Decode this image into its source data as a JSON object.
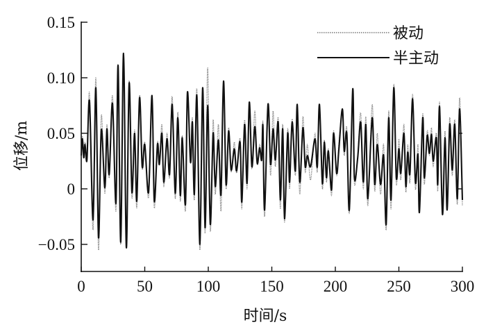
{
  "chart_data": {
    "type": "line",
    "xlabel": "时间/s",
    "ylabel": "位移/m",
    "xlim": [
      0,
      300
    ],
    "ylim": [
      -0.075,
      0.15
    ],
    "x_ticks": [
      0,
      50,
      100,
      150,
      200,
      250,
      300
    ],
    "x_tick_labels": [
      "0",
      "50",
      "100",
      "150",
      "200",
      "250",
      "300"
    ],
    "y_ticks": [
      -0.05,
      0,
      0.05,
      0.1,
      0.15
    ],
    "y_tick_labels": [
      "−0.05",
      "0",
      "0.05",
      "0.10",
      "0.15"
    ],
    "grid": false,
    "legend_position": "top-right",
    "x": [
      0,
      1,
      2,
      3,
      4.5,
      6.5,
      9.3,
      11.5,
      13.6,
      15.8,
      18.6,
      20.2,
      22,
      24.6,
      27.3,
      29,
      31.1,
      33.3,
      35.5,
      37.7,
      39.9,
      42,
      43.7,
      45.9,
      48,
      50,
      53,
      55.7,
      57.5,
      60,
      61.5,
      63.5,
      65,
      67.5,
      69.5,
      71.6,
      74,
      76,
      78,
      79.5,
      82,
      83.6,
      86,
      87.5,
      89,
      91,
      93.4,
      95.6,
      97.5,
      99.5,
      101.6,
      103.8,
      105.5,
      108,
      110,
      112,
      114,
      116,
      118,
      120.5,
      122.3,
      125,
      126.4,
      128.6,
      130.5,
      132.3,
      134.3,
      136.6,
      138.5,
      140.4,
      142,
      143,
      144.3,
      147,
      149,
      151,
      152.8,
      155,
      156.7,
      158.6,
      160,
      162.5,
      164,
      166,
      168.5,
      170,
      172,
      174.5,
      176.3,
      178,
      180.5,
      184,
      185.8,
      187.5,
      189.8,
      191.3,
      193,
      194.5,
      197,
      198.6,
      201,
      202.7,
      205.5,
      207,
      209,
      211,
      213.7,
      215,
      217.6,
      220,
      222,
      224,
      225.6,
      229,
      231,
      233,
      235.6,
      238,
      240,
      242,
      243.8,
      246,
      248,
      250,
      251.5,
      254,
      255.5,
      257,
      258.7,
      260.8,
      263,
      265,
      266.2,
      268.8,
      270,
      272.3,
      274,
      275.7,
      277,
      279.5,
      280.6,
      282,
      284.3,
      286.3,
      288,
      290,
      292,
      294,
      296,
      297.8,
      300
    ],
    "series": [
      {
        "name": "被动",
        "style": "dotted",
        "color": "#777777",
        "values": [
          0.03,
          0.047,
          0.028,
          0.042,
          0.025,
          0.086,
          -0.037,
          0.1,
          -0.055,
          0.066,
          -0.004,
          0.058,
          0.01,
          0.084,
          -0.02,
          0.112,
          -0.05,
          0.12,
          -0.05,
          0.097,
          -0.008,
          0.053,
          -0.017,
          0.084,
          0.018,
          0.042,
          -0.008,
          0.08,
          -0.017,
          0.042,
          0.021,
          0.058,
          0.002,
          0.05,
          0.01,
          0.083,
          -0.009,
          0.069,
          -0.011,
          0.048,
          -0.02,
          0.085,
          0.023,
          0.064,
          -0.01,
          0.09,
          -0.055,
          0.08,
          -0.04,
          0.109,
          -0.038,
          0.062,
          -0.005,
          0.058,
          -0.02,
          0.09,
          0,
          0.055,
          0.015,
          0.042,
          0.014,
          0.045,
          -0.018,
          0.062,
          0,
          0.072,
          0.018,
          0.07,
          0.022,
          0.04,
          0.025,
          0.06,
          -0.025,
          0.075,
          0.012,
          0.07,
          0.02,
          0.064,
          -0.018,
          0.058,
          -0.03,
          0.054,
          0,
          0.063,
          0.012,
          0.07,
          -0.005,
          0.065,
          0.015,
          0.04,
          0.008,
          0.05,
          0.015,
          0.074,
          0,
          0.044,
          0.006,
          0.036,
          -0.006,
          0.052,
          0.012,
          0.04,
          0.07,
          0.03,
          0.055,
          -0.022,
          0.085,
          0.005,
          0.03,
          0.068,
          0,
          0.065,
          -0.015,
          0.076,
          -0.002,
          0.05,
          -0.005,
          0.04,
          -0.037,
          0.07,
          -0.018,
          0.094,
          0.004,
          0.045,
          0.008,
          0.058,
          -0.003,
          0.04,
          0.006,
          0.085,
          0,
          0.04,
          -0.016,
          0.068,
          0.004,
          0.052,
          0.03,
          0.055,
          0.02,
          0.05,
          -0.002,
          0.078,
          -0.02,
          0.052,
          -0.015,
          0.064,
          0.012,
          0.062,
          -0.014,
          0.082,
          -0.015
        ]
      },
      {
        "name": "半主动",
        "style": "solid",
        "color": "#111111",
        "values": [
          0.03,
          0.045,
          0.028,
          0.04,
          0.026,
          0.079,
          -0.028,
          0.091,
          -0.044,
          0.053,
          0.001,
          0.054,
          0.013,
          0.077,
          -0.013,
          0.111,
          -0.048,
          0.122,
          -0.053,
          0.095,
          -0.003,
          0.05,
          -0.011,
          0.082,
          0.02,
          0.04,
          -0.003,
          0.084,
          -0.011,
          0.04,
          0.022,
          0.05,
          0.006,
          0.045,
          0.013,
          0.076,
          -0.004,
          0.064,
          -0.006,
          0.046,
          -0.014,
          0.087,
          0.024,
          0.06,
          -0.005,
          0.084,
          -0.05,
          0.091,
          -0.035,
          0.075,
          -0.032,
          0.05,
          0.002,
          0.044,
          -0.005,
          0.097,
          0.004,
          0.052,
          0.017,
          0.036,
          0.016,
          0.042,
          -0.012,
          0.058,
          0.005,
          0.078,
          0.02,
          0.056,
          0.023,
          0.037,
          0.026,
          0.057,
          -0.019,
          0.076,
          0.022,
          0.054,
          0.026,
          0.06,
          -0.01,
          0.054,
          -0.027,
          0.05,
          0.006,
          0.06,
          0.016,
          0.076,
          0.006,
          0.055,
          0.02,
          0.03,
          0.02,
          0.045,
          0.02,
          0.076,
          0.005,
          0.042,
          0.01,
          0.034,
          -0.001,
          0.05,
          0.014,
          0.034,
          0.072,
          0.034,
          0.05,
          -0.019,
          0.09,
          0.01,
          0.028,
          0.06,
          0.006,
          0.058,
          -0.009,
          0.064,
          0.004,
          0.04,
          0.004,
          0.03,
          -0.032,
          0.064,
          -0.01,
          0.091,
          0.01,
          0.036,
          0.014,
          0.05,
          0.002,
          0.033,
          0.014,
          0.081,
          0.006,
          0.031,
          -0.021,
          0.064,
          0.01,
          0.048,
          0.032,
          0.049,
          0.025,
          0.046,
          0.004,
          0.074,
          -0.023,
          0.046,
          -0.019,
          0.058,
          0.017,
          0.058,
          -0.009,
          0.072,
          -0.01
        ]
      }
    ]
  }
}
